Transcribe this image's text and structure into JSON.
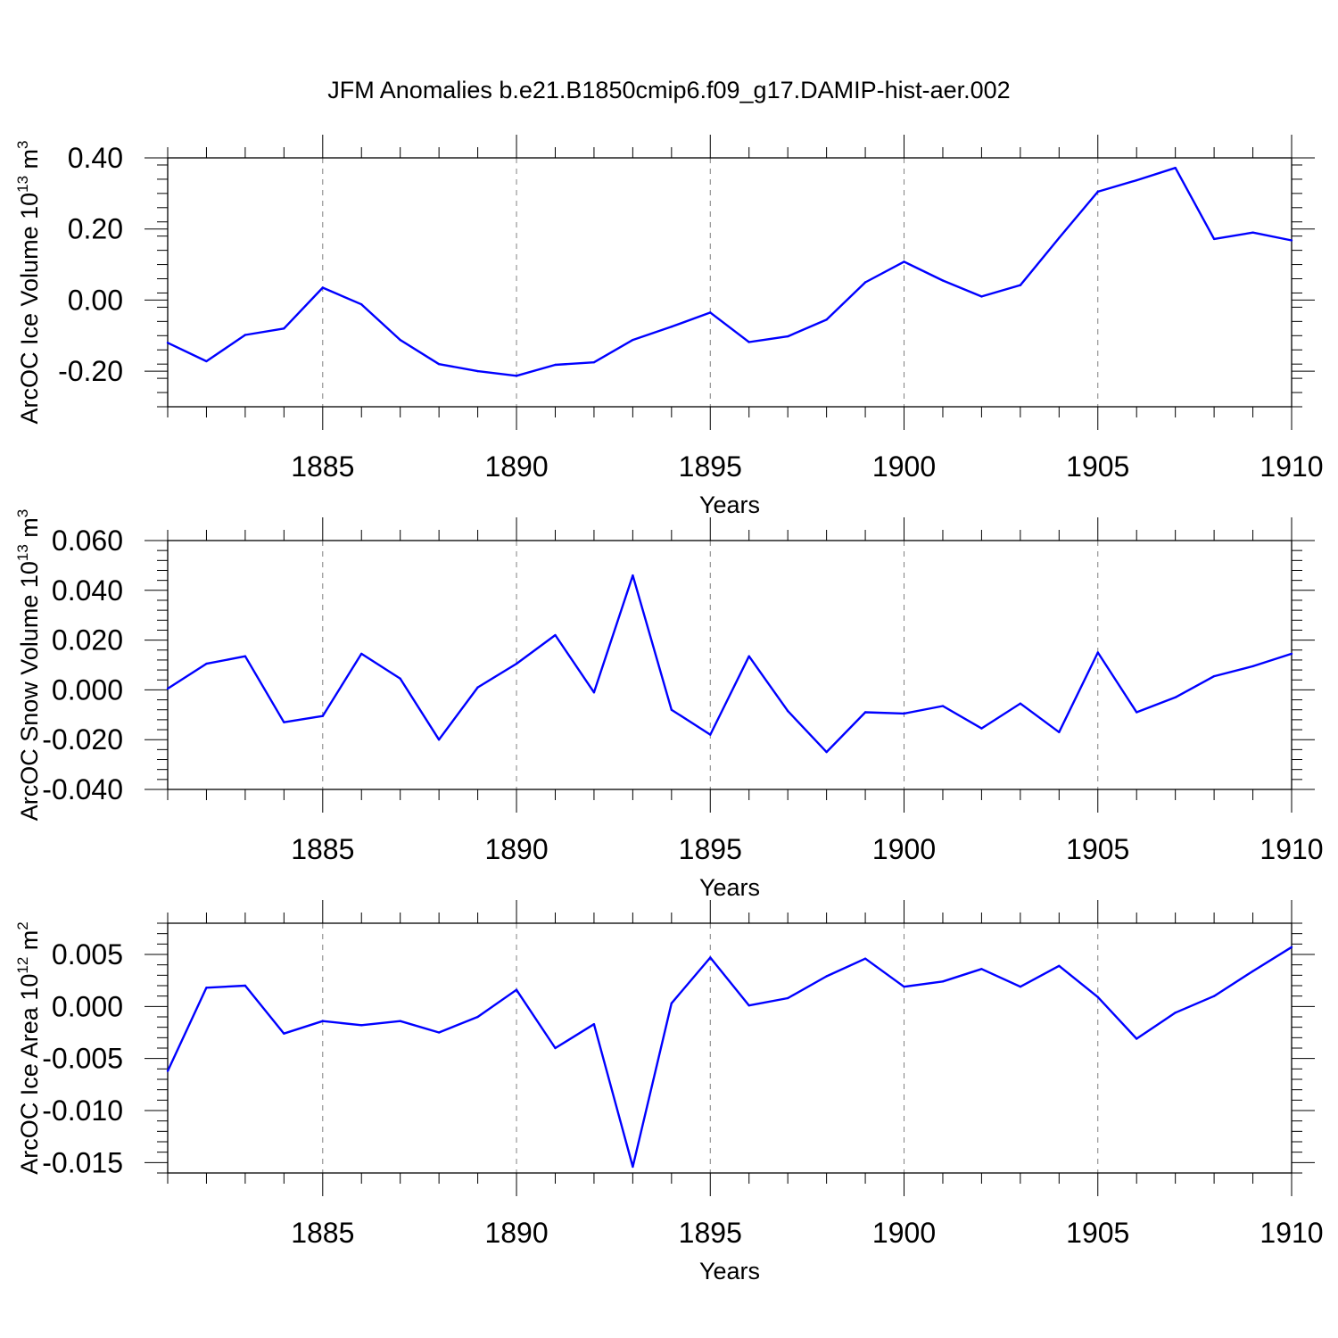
{
  "title": "JFM Anomalies b.e21.B1850cmip6.f09_g17.DAMIP-hist-aer.002",
  "colors": {
    "line": "#0000ff",
    "axis": "#000000",
    "grid": "#808080"
  },
  "chart_data": [
    {
      "type": "line",
      "ylabel": {
        "text": "ArcOC Ice Volume 10",
        "exponent": "13",
        "unit": " m",
        "unit_exponent": "3"
      },
      "xlabel": "Years",
      "xlim": [
        1881,
        1910
      ],
      "ylim": [
        -0.3,
        0.4
      ],
      "yticks": [
        -0.2,
        0.0,
        0.2,
        0.4
      ],
      "ytick_labels": [
        "-0.20",
        "0.00",
        "0.20",
        "0.40"
      ],
      "xticks": [
        1885,
        1890,
        1895,
        1900,
        1905,
        1910
      ],
      "xtick_labels": [
        "1885",
        "1890",
        "1895",
        "1900",
        "1905",
        "1910"
      ],
      "grid": "vertical dashed at major x ticks",
      "x": [
        1881,
        1882,
        1883,
        1884,
        1885,
        1886,
        1887,
        1888,
        1889,
        1890,
        1891,
        1892,
        1893,
        1894,
        1895,
        1896,
        1897,
        1898,
        1899,
        1900,
        1901,
        1902,
        1903,
        1904,
        1905,
        1906,
        1907,
        1908,
        1909,
        1910
      ],
      "values": [
        -0.12,
        -0.172,
        -0.098,
        -0.08,
        0.035,
        -0.012,
        -0.112,
        -0.18,
        -0.2,
        -0.213,
        -0.182,
        -0.175,
        -0.112,
        -0.075,
        -0.035,
        -0.118,
        -0.102,
        -0.055,
        0.05,
        0.108,
        0.055,
        0.01,
        0.042,
        0.175,
        0.305,
        0.337,
        0.372,
        0.172,
        0.19,
        0.168
      ]
    },
    {
      "type": "line",
      "ylabel": {
        "text": "ArcOC Snow Volume 10",
        "exponent": "13",
        "unit": " m",
        "unit_exponent": "3"
      },
      "xlabel": "Years",
      "xlim": [
        1881,
        1910
      ],
      "ylim": [
        -0.04,
        0.06
      ],
      "yticks": [
        -0.04,
        -0.02,
        0.0,
        0.02,
        0.04,
        0.06
      ],
      "ytick_labels": [
        "-0.040",
        "-0.020",
        "0.000",
        "0.020",
        "0.040",
        "0.060"
      ],
      "xticks": [
        1885,
        1890,
        1895,
        1900,
        1905,
        1910
      ],
      "xtick_labels": [
        "1885",
        "1890",
        "1895",
        "1900",
        "1905",
        "1910"
      ],
      "grid": "vertical dashed at major x ticks",
      "x": [
        1881,
        1882,
        1883,
        1884,
        1885,
        1886,
        1887,
        1888,
        1889,
        1890,
        1891,
        1892,
        1893,
        1894,
        1895,
        1896,
        1897,
        1898,
        1899,
        1900,
        1901,
        1902,
        1903,
        1904,
        1905,
        1906,
        1907,
        1908,
        1909,
        1910
      ],
      "values": [
        0.0005,
        0.0105,
        0.0135,
        -0.013,
        -0.0105,
        0.0145,
        0.0045,
        -0.02,
        0.001,
        0.0105,
        0.022,
        -0.001,
        0.046,
        -0.008,
        -0.018,
        0.0135,
        -0.0085,
        -0.025,
        -0.009,
        -0.0095,
        -0.0065,
        -0.0155,
        -0.0055,
        -0.017,
        0.015,
        -0.009,
        -0.003,
        0.0055,
        0.0095,
        0.0145
      ]
    },
    {
      "type": "line",
      "ylabel": {
        "text": "ArcOC Ice Area 10",
        "exponent": "12",
        "unit": " m",
        "unit_exponent": "2"
      },
      "xlabel": "Years",
      "xlim": [
        1881,
        1910
      ],
      "ylim": [
        -0.016,
        0.008
      ],
      "yticks": [
        -0.015,
        -0.01,
        -0.005,
        0.0,
        0.005
      ],
      "ytick_labels": [
        "-0.015",
        "-0.010",
        "-0.005",
        "0.000",
        "0.005"
      ],
      "xticks": [
        1885,
        1890,
        1895,
        1900,
        1905,
        1910
      ],
      "xtick_labels": [
        "1885",
        "1890",
        "1895",
        "1900",
        "1905",
        "1910"
      ],
      "grid": "vertical dashed at major x ticks",
      "x": [
        1881,
        1882,
        1883,
        1884,
        1885,
        1886,
        1887,
        1888,
        1889,
        1890,
        1891,
        1892,
        1893,
        1894,
        1895,
        1896,
        1897,
        1898,
        1899,
        1900,
        1901,
        1902,
        1903,
        1904,
        1905,
        1906,
        1907,
        1908,
        1909,
        1910
      ],
      "values": [
        -0.0062,
        0.0018,
        0.002,
        -0.0026,
        -0.0014,
        -0.0018,
        -0.0014,
        -0.0025,
        -0.001,
        0.0016,
        -0.004,
        -0.0017,
        -0.0154,
        0.0003,
        0.0047,
        0.0001,
        0.0008,
        0.0029,
        0.0046,
        0.0019,
        0.0024,
        0.0036,
        0.0019,
        0.0039,
        0.0009,
        -0.0031,
        -0.0006,
        0.001,
        0.0034,
        0.0057
      ]
    }
  ]
}
